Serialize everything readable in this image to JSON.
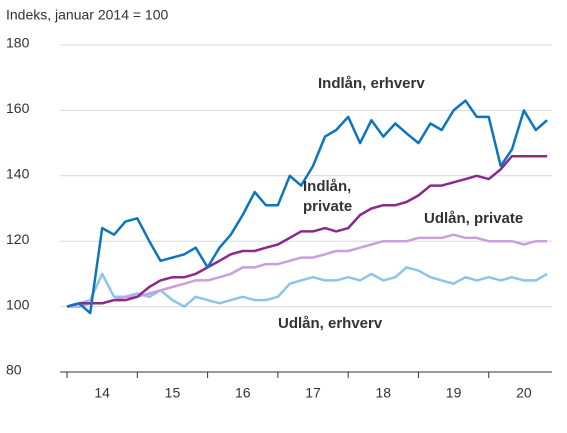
{
  "chart_data": {
    "type": "line",
    "subtitle": "Indeks, januar 2014 = 100",
    "x": [
      2014.0,
      2014.17,
      2014.33,
      2014.5,
      2014.67,
      2014.83,
      2015.0,
      2015.17,
      2015.33,
      2015.5,
      2015.67,
      2015.83,
      2016.0,
      2016.17,
      2016.33,
      2016.5,
      2016.67,
      2016.83,
      2017.0,
      2017.17,
      2017.33,
      2017.5,
      2017.67,
      2017.83,
      2018.0,
      2018.17,
      2018.33,
      2018.5,
      2018.67,
      2018.83,
      2019.0,
      2019.17,
      2019.33,
      2019.5,
      2019.67,
      2019.83,
      2020.0,
      2020.17,
      2020.33,
      2020.5,
      2020.67,
      2020.83
    ],
    "series": [
      {
        "name": "Indlån, erhverv",
        "color": "#0c75be",
        "values": [
          100,
          101,
          98,
          124,
          122,
          126,
          127,
          120,
          114,
          115,
          116,
          118,
          112,
          118,
          122,
          128,
          135,
          131,
          131,
          140,
          137,
          143,
          152,
          154,
          158,
          150,
          157,
          152,
          156,
          153,
          150,
          156,
          154,
          160,
          163,
          158,
          158,
          143,
          148,
          160,
          154,
          157
        ]
      },
      {
        "name": "Indlån,\nprivate",
        "color": "#8a2a8c",
        "values": [
          100,
          101,
          101,
          101,
          102,
          102,
          103,
          106,
          108,
          109,
          109,
          110,
          112,
          114,
          116,
          117,
          117,
          118,
          119,
          121,
          123,
          123,
          124,
          123,
          124,
          128,
          130,
          131,
          131,
          132,
          134,
          137,
          137,
          138,
          139,
          140,
          139,
          142,
          146,
          146,
          146,
          146
        ]
      },
      {
        "name": "Udlån, private",
        "color": "#c9a0dc",
        "values": [
          100,
          100,
          101,
          101,
          102,
          103,
          103,
          104,
          105,
          106,
          107,
          108,
          108,
          109,
          110,
          112,
          112,
          113,
          113,
          114,
          115,
          115,
          116,
          117,
          117,
          118,
          119,
          120,
          120,
          120,
          121,
          121,
          121,
          122,
          121,
          121,
          120,
          120,
          120,
          119,
          120,
          120
        ]
      },
      {
        "name": "Udlån, erhverv",
        "color": "#8cc4ea",
        "values": [
          100,
          101,
          102,
          110,
          103,
          103,
          104,
          103,
          105,
          102,
          100,
          103,
          102,
          101,
          102,
          103,
          102,
          102,
          103,
          107,
          108,
          109,
          108,
          108,
          109,
          108,
          110,
          108,
          109,
          112,
          111,
          109,
          108,
          107,
          109,
          108,
          109,
          108,
          109,
          108,
          108,
          110
        ]
      }
    ],
    "xlim": [
      2013.9,
      2020.9
    ],
    "xticks": [
      {
        "value": 2014.5,
        "label": "14"
      },
      {
        "value": 2015.5,
        "label": "15"
      },
      {
        "value": 2016.5,
        "label": "16"
      },
      {
        "value": 2017.5,
        "label": "17"
      },
      {
        "value": 2018.5,
        "label": "18"
      },
      {
        "value": 2019.5,
        "label": "19"
      },
      {
        "value": 2020.5,
        "label": "20"
      }
    ],
    "xminor": [
      2014,
      2015,
      2016,
      2017,
      2018,
      2019,
      2020
    ],
    "ylim": [
      80,
      180
    ],
    "yticks": [
      80,
      100,
      120,
      140,
      160,
      180
    ],
    "grid": true
  }
}
